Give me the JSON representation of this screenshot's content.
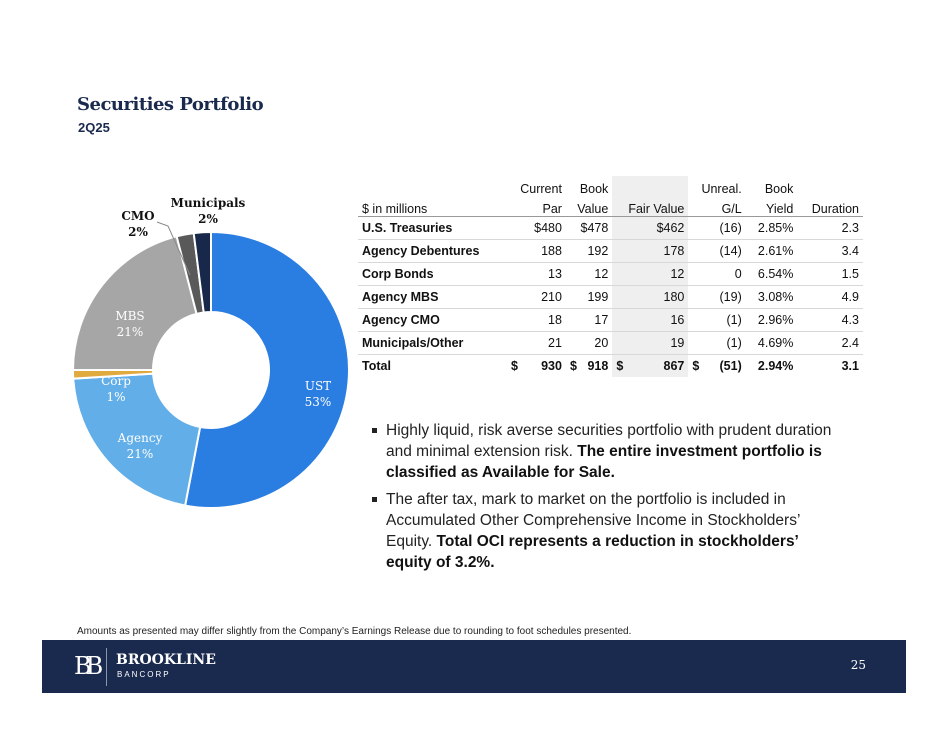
{
  "header": {
    "title": "Securities Portfolio",
    "subtitle": "2Q25"
  },
  "chart_data": {
    "type": "pie",
    "variant": "donut",
    "title": "",
    "categories": [
      "UST",
      "Agency",
      "Corp",
      "MBS",
      "CMO",
      "Municipals"
    ],
    "values": [
      53,
      21,
      1,
      21,
      2,
      2
    ],
    "labels": [
      "53%",
      "21%",
      "1%",
      "21%",
      "2%",
      "2%"
    ],
    "colors": [
      "#2a7de1",
      "#62aee8",
      "#e0aa3e",
      "#a6a6a6",
      "#595959",
      "#17284b"
    ]
  },
  "table": {
    "headers_top": [
      "",
      "Current",
      "Book",
      "",
      "Unreal.",
      "Book",
      ""
    ],
    "headers": [
      "$ in millions",
      "Par",
      "Value",
      "Fair Value",
      "G/L",
      "Yield",
      "Duration"
    ],
    "rows": [
      [
        "U.S. Treasuries",
        "$480",
        "$478",
        "$462",
        "(16)",
        "2.85%",
        "2.3"
      ],
      [
        "Agency Debentures",
        "188",
        "192",
        "178",
        "(14)",
        "2.61%",
        "3.4"
      ],
      [
        "Corp Bonds",
        "13",
        "12",
        "12",
        "0",
        "6.54%",
        "1.5"
      ],
      [
        "Agency MBS",
        "210",
        "199",
        "180",
        "(19)",
        "3.08%",
        "4.9"
      ],
      [
        "Agency CMO",
        "18",
        "17",
        "16",
        "(1)",
        "2.96%",
        "4.3"
      ],
      [
        "Municipals/Other",
        "21",
        "20",
        "19",
        "(1)",
        "4.69%",
        "2.4"
      ]
    ],
    "total": {
      "label": "Total",
      "par": "930",
      "book": "918",
      "fair": "867",
      "gl": "(51)",
      "yield": "2.94%",
      "duration": "3.1",
      "currency": "$"
    }
  },
  "bullets": [
    {
      "text": "Highly liquid, risk averse securities portfolio with prudent duration and minimal extension risk. ",
      "bold": "The entire investment portfolio is classified as Available for Sale."
    },
    {
      "text": "The after tax, mark to market on the portfolio is included in Accumulated Other Comprehensive Income in Stockholders’ Equity. ",
      "bold": "Total OCI represents a reduction in stockholders’ equity of 3.2%."
    }
  ],
  "note": "Amounts as presented may differ slightly from the Company’s Earnings Release due to rounding to foot schedules presented.",
  "footer": {
    "logo_mark": "BB",
    "brand": "BROOKLINE",
    "brand_sub": "BANCORP",
    "page": "25"
  }
}
